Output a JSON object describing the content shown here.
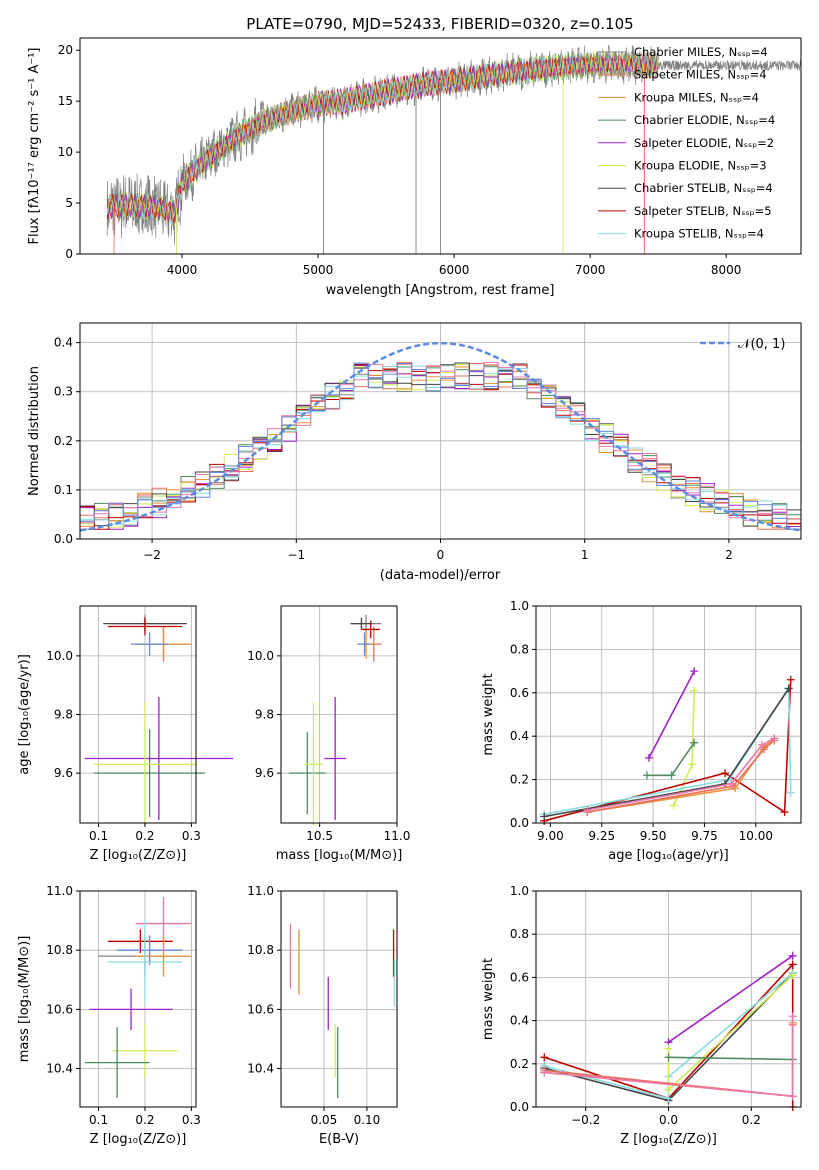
{
  "title": "PLATE=0790, MJD=52433, FIBERID=0320, z=0.105",
  "colors": {
    "chabrier_miles": "#808080",
    "salpeter_miles": "#e8705f",
    "kroupa_miles": "#e69138",
    "chabrier_elodie": "#4f8c5e",
    "salpeter_elodie": "#a020c8",
    "kroupa_elodie": "#ccee55",
    "chabrier_stelib": "#444444",
    "salpeter_stelib": "#c00000",
    "kroupa_stelib": "#88dde0",
    "normal": "#5c8ce0",
    "pink": "#ee77aa",
    "blue": "#6688dd"
  },
  "spectrum": {
    "type": "line",
    "xlabel": "wavelength [Angstrom, rest frame]",
    "ylabel": "Flux [fλ10⁻¹⁷ erg cm⁻² s⁻¹ A⁻¹]",
    "xlim": [
      3250,
      8550
    ],
    "ylim": [
      0,
      21.2
    ],
    "xticks": [
      4000,
      5000,
      6000,
      7000,
      8000
    ],
    "yticks": [
      0,
      5,
      10,
      15,
      20
    ],
    "legend": [
      {
        "label": "Chabrier MILES, Nₛₛₚ=4",
        "color": "chabrier_miles"
      },
      {
        "label": "Salpeter MILES, Nₛₛₚ=4",
        "color": "salpeter_miles"
      },
      {
        "label": "Kroupa MILES, Nₛₛₚ=4",
        "color": "kroupa_miles"
      },
      {
        "label": "Chabrier ELODIE, Nₛₛₚ=4",
        "color": "chabrier_elodie"
      },
      {
        "label": "Salpeter ELODIE, Nₛₛₚ=2",
        "color": "salpeter_elodie"
      },
      {
        "label": "Kroupa ELODIE, Nₛₛₚ=3",
        "color": "kroupa_elodie"
      },
      {
        "label": "Chabrier STELIB, Nₛₛₚ=4",
        "color": "chabrier_stelib"
      },
      {
        "label": "Salpeter STELIB, Nₛₛₚ=5",
        "color": "salpeter_stelib"
      },
      {
        "label": "Kroupa STELIB, Nₛₛₚ=4",
        "color": "kroupa_stelib"
      }
    ],
    "continuum": [
      [
        3450,
        4.6
      ],
      [
        3600,
        4.8
      ],
      [
        3800,
        4.6
      ],
      [
        3950,
        4.0
      ],
      [
        4000,
        7.0
      ],
      [
        4200,
        9.5
      ],
      [
        4400,
        11.5
      ],
      [
        4600,
        13.0
      ],
      [
        4800,
        14.0
      ],
      [
        5000,
        14.7
      ],
      [
        5200,
        15.0
      ],
      [
        5400,
        15.6
      ],
      [
        5600,
        16.2
      ],
      [
        5800,
        16.7
      ],
      [
        6000,
        17.0
      ],
      [
        6300,
        17.6
      ],
      [
        6600,
        18.1
      ],
      [
        6800,
        18.4
      ],
      [
        7000,
        18.6
      ],
      [
        7300,
        18.6
      ],
      [
        7500,
        18.5
      ]
    ]
  },
  "residuals": {
    "type": "bar",
    "xlabel": "(data-model)/error",
    "ylabel": "Normed distribution",
    "xlim": [
      -2.5,
      2.5
    ],
    "ylim": [
      0,
      0.44
    ],
    "xticks": [
      -2,
      -1,
      0,
      1,
      2
    ],
    "yticks": [
      0.0,
      0.1,
      0.2,
      0.3,
      0.4
    ],
    "legend_label": "𝒩(0, 1)"
  },
  "panels": {
    "age_vs_Z": {
      "xlabel": "Z [log₁₀(Z/Z⊙)]",
      "ylabel": "age  [log₁₀(age/yr)]",
      "xlim": [
        0.06,
        0.31
      ],
      "ylim": [
        9.43,
        10.17
      ],
      "xticks": [
        0.1,
        0.2,
        0.3
      ],
      "yticks": [
        9.6,
        9.8,
        10.0
      ]
    },
    "age_vs_mass": {
      "xlabel": "mass [log₁₀(M/M⊙)]",
      "xlim": [
        10.25,
        11.0
      ],
      "ylim": [
        9.43,
        10.17
      ],
      "xticks": [
        10.5,
        11.0
      ],
      "yticks": [
        9.6,
        9.8,
        10.0
      ]
    },
    "mw_vs_age": {
      "xlabel": "age  [log₁₀(age/yr)]",
      "ylabel": "mass weight",
      "xlim": [
        8.93,
        10.22
      ],
      "ylim": [
        0,
        1
      ],
      "xticks": [
        9.0,
        9.25,
        9.5,
        9.75,
        10.0
      ],
      "yticks": [
        0.0,
        0.2,
        0.4,
        0.6,
        0.8,
        1.0
      ]
    },
    "mass_vs_Z": {
      "xlabel": "Z [log₁₀(Z/Z⊙)]",
      "ylabel": "mass [log₁₀(M/M⊙)]",
      "xlim": [
        0.06,
        0.31
      ],
      "ylim": [
        10.27,
        11.0
      ],
      "xticks": [
        0.1,
        0.2,
        0.3
      ],
      "yticks": [
        10.4,
        10.6,
        10.8,
        11.0
      ]
    },
    "mass_vs_ebv": {
      "xlabel": "E(B-V)",
      "xlim": [
        0.0,
        0.135
      ],
      "ylim": [
        10.27,
        11.0
      ],
      "xticks": [
        0.05,
        0.1
      ],
      "yticks": [
        10.4,
        10.6,
        10.8,
        11.0
      ]
    },
    "mw_vs_Z": {
      "xlabel": "Z [log₁₀(Z/Z⊙)]",
      "ylabel": "mass weight",
      "xlim": [
        -0.32,
        0.32
      ],
      "ylim": [
        0,
        1
      ],
      "xticks": [
        -0.2,
        0.0,
        0.2
      ],
      "yticks": [
        0.0,
        0.2,
        0.4,
        0.6,
        0.8,
        1.0
      ]
    }
  },
  "chart_data": [
    {
      "type": "line",
      "title": "PLATE=0790, MJD=52433, FIBERID=0320, z=0.105",
      "xlabel": "wavelength [Angstrom, rest frame]",
      "ylabel": "Flux [fλ10⁻¹⁷ erg cm⁻² s⁻¹ A⁻¹]",
      "series": [
        {
          "name": "Chabrier MILES, Nₛₛₚ=4"
        },
        {
          "name": "Salpeter MILES, Nₛₛₚ=4"
        },
        {
          "name": "Kroupa MILES, Nₛₛₚ=4"
        },
        {
          "name": "Chabrier ELODIE, Nₛₛₚ=4"
        },
        {
          "name": "Salpeter ELODIE, Nₛₛₚ=2"
        },
        {
          "name": "Kroupa ELODIE, Nₛₛₚ=3"
        },
        {
          "name": "Chabrier STELIB, Nₛₛₚ=4"
        },
        {
          "name": "Salpeter STELIB, Nₛₛₚ=5"
        },
        {
          "name": "Kroupa STELIB, Nₛₛₚ=4"
        }
      ]
    },
    {
      "type": "bar",
      "xlabel": "(data-model)/error",
      "ylabel": "Normed distribution",
      "series": [
        {
          "name": "𝒩(0, 1)",
          "mean": 0,
          "sigma": 1
        }
      ]
    },
    {
      "type": "scatter",
      "xlabel": "Z [log₁₀(Z/Z⊙)]",
      "ylabel": "age  [log₁₀(age/yr)]",
      "points": [
        {
          "x": 0.2,
          "y": 10.11,
          "xerr": 0.07,
          "yerr": 0.03,
          "c": "chabrier_miles"
        },
        {
          "x": 0.24,
          "y": 10.04,
          "xerr": 0.06,
          "yerr": 0.06,
          "c": "salpeter_miles"
        },
        {
          "x": 0.24,
          "y": 10.04,
          "xerr": 0.06,
          "yerr": 0.05,
          "c": "kroupa_miles"
        },
        {
          "x": 0.21,
          "y": 9.6,
          "xerr": 0.12,
          "yerr": 0.15,
          "c": "chabrier_elodie"
        },
        {
          "x": 0.23,
          "y": 9.65,
          "xerr": 0.16,
          "yerr": 0.21,
          "c": "salpeter_elodie"
        },
        {
          "x": 0.2,
          "y": 9.63,
          "xerr": 0.11,
          "yerr": 0.21,
          "c": "kroupa_elodie"
        },
        {
          "x": 0.2,
          "y": 10.11,
          "xerr": 0.09,
          "yerr": 0.02,
          "c": "chabrier_stelib"
        },
        {
          "x": 0.2,
          "y": 10.1,
          "xerr": 0.08,
          "yerr": 0.03,
          "c": "salpeter_stelib"
        },
        {
          "x": 0.21,
          "y": 10.04,
          "xerr": 0.04,
          "yerr": 0.04,
          "c": "blue"
        }
      ]
    },
    {
      "type": "scatter",
      "xlabel": "mass [log₁₀(M/M⊙)]",
      "points": [
        {
          "x": 10.8,
          "y": 10.11,
          "xerr": 0.1,
          "yerr": 0.03,
          "c": "chabrier_miles"
        },
        {
          "x": 10.85,
          "y": 10.04,
          "xerr": 0.05,
          "yerr": 0.06,
          "c": "salpeter_miles"
        },
        {
          "x": 10.8,
          "y": 10.04,
          "xerr": 0.06,
          "yerr": 0.05,
          "c": "kroupa_miles"
        },
        {
          "x": 10.42,
          "y": 9.6,
          "xerr": 0.12,
          "yerr": 0.14,
          "c": "chabrier_elodie"
        },
        {
          "x": 10.6,
          "y": 9.65,
          "xerr": 0.07,
          "yerr": 0.21,
          "c": "salpeter_elodie"
        },
        {
          "x": 10.46,
          "y": 9.63,
          "xerr": 0.06,
          "yerr": 0.21,
          "c": "kroupa_elodie"
        },
        {
          "x": 10.77,
          "y": 10.11,
          "xerr": 0.07,
          "yerr": 0.02,
          "c": "chabrier_stelib"
        },
        {
          "x": 10.83,
          "y": 10.09,
          "xerr": 0.06,
          "yerr": 0.03,
          "c": "salpeter_stelib"
        },
        {
          "x": 10.79,
          "y": 10.04,
          "xerr": 0.04,
          "yerr": 0.04,
          "c": "blue"
        }
      ]
    },
    {
      "type": "line",
      "xlabel": "age  [log₁₀(age/yr)]",
      "ylabel": "mass weight",
      "series": [
        {
          "name": "Salpeter ELODIE, Nₛₛₚ=2",
          "c": "salpeter_elodie",
          "x": [
            9.48,
            9.7
          ],
          "y": [
            0.3,
            0.7
          ]
        },
        {
          "name": "Kroupa ELODIE, Nₛₛₚ=3",
          "c": "kroupa_elodie",
          "x": [
            9.6,
            9.69,
            9.7
          ],
          "y": [
            0.08,
            0.27,
            0.61
          ]
        },
        {
          "name": "Chabrier ELODIE, Nₛₛₚ=4",
          "c": "chabrier_elodie",
          "x": [
            9.47,
            9.59,
            9.7
          ],
          "y": [
            0.22,
            0.22,
            0.37
          ]
        },
        {
          "name": "Salpeter STELIB, Nₛₛₚ=5",
          "c": "salpeter_stelib",
          "x": [
            8.97,
            9.85,
            10.14,
            10.17
          ],
          "y": [
            0.01,
            0.23,
            0.05,
            0.66
          ]
        },
        {
          "name": "Kroupa STELIB, Nₛₛₚ=4",
          "c": "kroupa_stelib",
          "x": [
            8.97,
            9.87,
            10.16,
            10.17
          ],
          "y": [
            0.04,
            0.2,
            0.62,
            0.14
          ]
        },
        {
          "name": "Chabrier STELIB, Nₛₛₚ=4",
          "c": "chabrier_stelib",
          "x": [
            8.97,
            9.85,
            10.16
          ],
          "y": [
            0.03,
            0.18,
            0.62
          ]
        },
        {
          "name": "Kroupa MILES, Nₛₛₚ=4",
          "c": "kroupa_miles",
          "x": [
            9.18,
            9.9,
            10.04,
            10.09
          ],
          "y": [
            0.05,
            0.16,
            0.35,
            0.39
          ]
        },
        {
          "name": "Salpeter MILES, Nₛₛₚ=4",
          "c": "salpeter_miles",
          "x": [
            9.18,
            9.89,
            10.04,
            10.09
          ],
          "y": [
            0.05,
            0.17,
            0.34,
            0.38
          ]
        },
        {
          "name": "Chabrier MILES, Nₛₛₚ=4",
          "c": "pink",
          "x": [
            9.18,
            9.88,
            10.03,
            10.09
          ],
          "y": [
            0.06,
            0.18,
            0.36,
            0.39
          ]
        }
      ]
    },
    {
      "type": "scatter",
      "xlabel": "Z [log₁₀(Z/Z⊙)]",
      "ylabel": "mass [log₁₀(M/M⊙)]",
      "points": [
        {
          "x": 0.24,
          "y": 10.89,
          "xerr": 0.06,
          "yerr": 0.09,
          "c": "pink"
        },
        {
          "x": 0.19,
          "y": 10.83,
          "xerr": 0.07,
          "yerr": 0.04,
          "c": "salpeter_stelib"
        },
        {
          "x": 0.21,
          "y": 10.8,
          "xerr": 0.07,
          "yerr": 0.05,
          "c": "blue"
        },
        {
          "x": 0.2,
          "y": 10.78,
          "xerr": 0.1,
          "yerr": 0.07,
          "c": "chabrier_miles"
        },
        {
          "x": 0.24,
          "y": 10.78,
          "xerr": 0.06,
          "yerr": 0.07,
          "c": "kroupa_miles"
        },
        {
          "x": 0.2,
          "y": 10.76,
          "xerr": 0.08,
          "yerr": 0.14,
          "c": "kroupa_stelib"
        },
        {
          "x": 0.17,
          "y": 10.6,
          "xerr": 0.09,
          "yerr": 0.07,
          "c": "salpeter_elodie"
        },
        {
          "x": 0.2,
          "y": 10.46,
          "xerr": 0.07,
          "yerr": 0.09,
          "c": "kroupa_elodie"
        },
        {
          "x": 0.14,
          "y": 10.42,
          "xerr": 0.07,
          "yerr": 0.12,
          "c": "chabrier_elodie"
        }
      ]
    },
    {
      "type": "scatter",
      "xlabel": "E(B-V)",
      "points": [
        {
          "x": 0.011,
          "y": 10.78,
          "yerr": 0.11,
          "c": "pink"
        },
        {
          "x": 0.021,
          "y": 10.76,
          "yerr": 0.11,
          "c": "kroupa_miles"
        },
        {
          "x": 0.055,
          "y": 10.62,
          "yerr": 0.09,
          "c": "salpeter_elodie"
        },
        {
          "x": 0.063,
          "y": 10.46,
          "yerr": 0.09,
          "c": "kroupa_elodie"
        },
        {
          "x": 0.066,
          "y": 10.42,
          "yerr": 0.12,
          "c": "chabrier_elodie"
        },
        {
          "x": 0.131,
          "y": 10.79,
          "yerr": 0.08,
          "c": "salpeter_stelib"
        },
        {
          "x": 0.132,
          "y": 10.69,
          "yerr": 0.08,
          "c": "kroupa_stelib"
        }
      ]
    },
    {
      "type": "line",
      "xlabel": "Z [log₁₀(Z/Z⊙)]",
      "ylabel": "mass weight",
      "series": [
        {
          "name": "Salpeter ELODIE, Nₛₛₚ=2",
          "c": "salpeter_elodie",
          "x": [
            0.0,
            0.3
          ],
          "y": [
            0.3,
            0.7
          ]
        },
        {
          "name": "Salpeter STELIB, Nₛₛₚ=5",
          "c": "salpeter_stelib",
          "x": [
            -0.3,
            0.0,
            0.3,
            0.3
          ],
          "y": [
            0.23,
            0.04,
            0.66,
            0.0
          ]
        },
        {
          "name": "Chabrier STELIB, Nₛₛₚ=4",
          "c": "chabrier_stelib",
          "x": [
            -0.3,
            0.0,
            0.3
          ],
          "y": [
            0.18,
            0.03,
            0.62
          ]
        },
        {
          "name": "Kroupa STELIB, Nₛₛₚ=4",
          "c": "kroupa_stelib",
          "x": [
            -0.3,
            0.0,
            0.0,
            0.3
          ],
          "y": [
            0.19,
            0.04,
            0.14,
            0.62
          ]
        },
        {
          "name": "Kroupa ELODIE, Nₛₛₚ=3",
          "c": "kroupa_elodie",
          "x": [
            0.0,
            0.0,
            0.3
          ],
          "y": [
            0.27,
            0.08,
            0.61
          ]
        },
        {
          "name": "Chabrier ELODIE, Nₛₛₚ=4",
          "c": "chabrier_elodie",
          "x": [
            0.0,
            0.3
          ],
          "y": [
            0.23,
            0.22
          ]
        },
        {
          "name": "Kroupa MILES, Nₛₛₚ=4",
          "c": "kroupa_miles",
          "x": [
            -0.3,
            0.3,
            0.3
          ],
          "y": [
            0.16,
            0.05,
            0.39
          ]
        },
        {
          "name": "Salpeter MILES, Nₛₛₚ=4",
          "c": "salpeter_miles",
          "x": [
            -0.3,
            0.3,
            0.3
          ],
          "y": [
            0.17,
            0.05,
            0.38
          ]
        },
        {
          "name": "Chabrier MILES, Nₛₛₚ=4",
          "c": "pink",
          "x": [
            -0.3,
            0.3,
            0.3
          ],
          "y": [
            0.16,
            0.05,
            0.42
          ]
        }
      ]
    }
  ]
}
